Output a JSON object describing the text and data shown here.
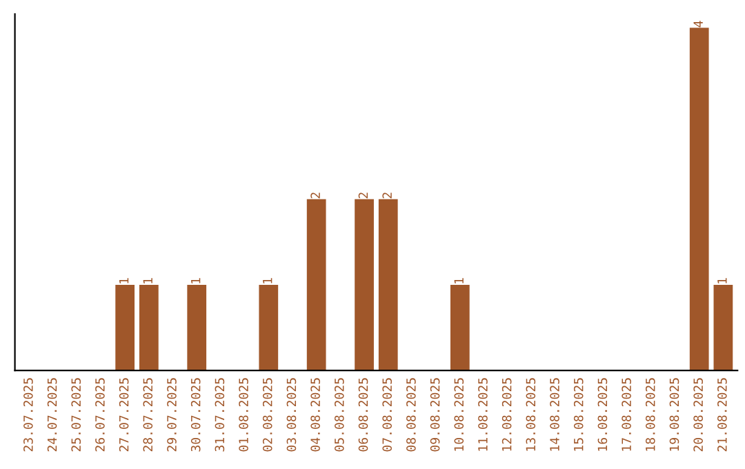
{
  "chart_data": {
    "type": "bar",
    "categories": [
      "23.07.2025",
      "24.07.2025",
      "25.07.2025",
      "26.07.2025",
      "27.07.2025",
      "28.07.2025",
      "29.07.2025",
      "30.07.2025",
      "31.07.2025",
      "01.08.2025",
      "02.08.2025",
      "03.08.2025",
      "04.08.2025",
      "05.08.2025",
      "06.08.2025",
      "07.08.2025",
      "08.08.2025",
      "09.08.2025",
      "10.08.2025",
      "11.08.2025",
      "12.08.2025",
      "13.08.2025",
      "14.08.2025",
      "15.08.2025",
      "16.08.2025",
      "17.08.2025",
      "18.08.2025",
      "19.08.2025",
      "20.08.2025",
      "21.08.2025"
    ],
    "values": [
      0,
      0,
      0,
      0,
      1,
      1,
      0,
      1,
      0,
      0,
      1,
      0,
      2,
      0,
      2,
      2,
      0,
      0,
      1,
      0,
      0,
      0,
      0,
      0,
      0,
      0,
      0,
      0,
      4,
      1
    ],
    "value_labels": [
      null,
      null,
      null,
      null,
      "1",
      "1",
      null,
      "1",
      null,
      null,
      "1",
      null,
      "2",
      null,
      "2",
      "2",
      null,
      null,
      "1",
      null,
      null,
      null,
      null,
      null,
      null,
      null,
      null,
      null,
      "4",
      "1"
    ],
    "color": "#a0572a",
    "grid": false,
    "legend": false
  }
}
